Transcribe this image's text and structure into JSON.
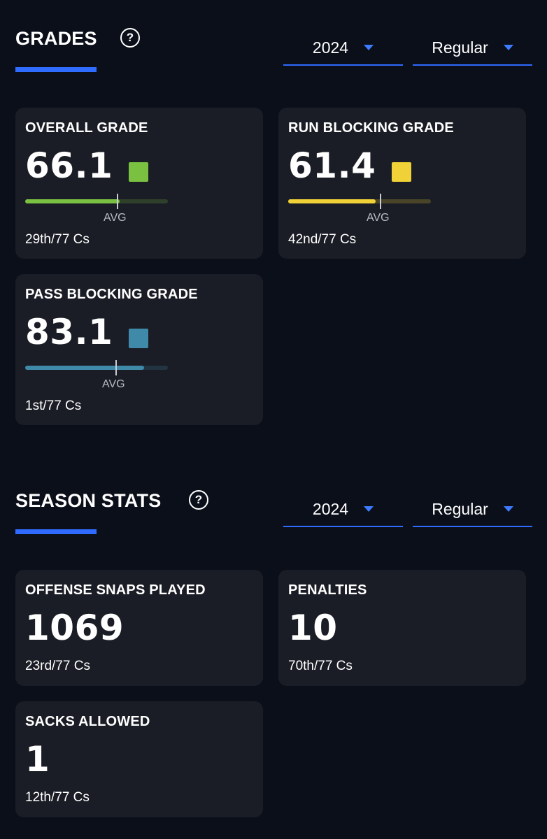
{
  "grades": {
    "title": "GRADES",
    "help": "?",
    "year": "2024",
    "season_type": "Regular",
    "cards": [
      {
        "label": "OVERALL GRADE",
        "value": "66.1",
        "color": "#7ac141",
        "bar_fill": 0.661,
        "avg_position": 0.64,
        "avg_label": "AVG",
        "rank": "29th/77 Cs"
      },
      {
        "label": "RUN BLOCKING GRADE",
        "value": "61.4",
        "color": "#f0d138",
        "bar_fill": 0.614,
        "avg_position": 0.64,
        "avg_label": "AVG",
        "rank": "42nd/77 Cs"
      },
      {
        "label": "PASS BLOCKING GRADE",
        "value": "83.1",
        "color": "#3e8aa8",
        "bar_fill": 0.831,
        "avg_position": 0.63,
        "avg_label": "AVG",
        "rank": "1st/77 Cs"
      }
    ]
  },
  "season_stats": {
    "title": "SEASON STATS",
    "help": "?",
    "year": "2024",
    "season_type": "Regular",
    "cards": [
      {
        "label": "OFFENSE SNAPS PLAYED",
        "value": "1069",
        "rank": "23rd/77 Cs"
      },
      {
        "label": "PENALTIES",
        "value": "10",
        "rank": "70th/77 Cs"
      },
      {
        "label": "SACKS ALLOWED",
        "value": "1",
        "rank": "12th/77 Cs"
      }
    ]
  }
}
